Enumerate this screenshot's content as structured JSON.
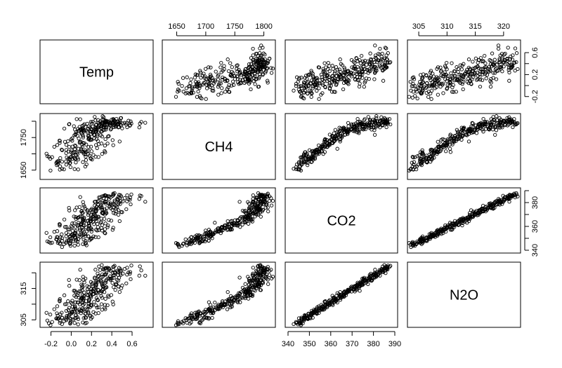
{
  "chart_data": {
    "type": "scatter",
    "variables": [
      "Temp",
      "CH4",
      "CO2",
      "N2O"
    ],
    "n_points": 308,
    "ranges": {
      "Temp": [
        -0.28,
        0.78
      ],
      "CH4": [
        1630,
        1815
      ],
      "CO2": [
        340,
        390
      ],
      "N2O": [
        303.5,
        322.5
      ]
    },
    "ticks": {
      "Temp": [
        -0.2,
        0.0,
        0.2,
        0.4,
        0.6
      ],
      "CH4": [
        1650,
        1700,
        1750,
        1800
      ],
      "CO2": [
        340,
        350,
        360,
        370,
        380,
        390
      ],
      "N2O": [
        305,
        310,
        315,
        320
      ]
    },
    "tick_labels_bottom": {
      "Temp": [
        "-0.2",
        "0.0",
        "0.2",
        "0.4",
        "0.6"
      ],
      "CO2": [
        "340",
        "350",
        "360",
        "370",
        "380",
        "390"
      ]
    },
    "tick_labels_top": {
      "CH4": [
        "1650",
        "1700",
        "1750",
        "1800"
      ],
      "N2O": [
        "305",
        "310",
        "315",
        "320"
      ]
    },
    "tick_labels_left": {
      "CH4": [
        "1650",
        "1750"
      ],
      "N2O": [
        "305",
        "315"
      ]
    },
    "tick_labels_right": {
      "Temp": [
        "-0.2",
        "0.2",
        "0.6"
      ],
      "CO2": [
        "340",
        "360",
        "380"
      ]
    },
    "pairs_layout": "matrix",
    "point_marker": "open-circle",
    "point_color": "#000000"
  }
}
